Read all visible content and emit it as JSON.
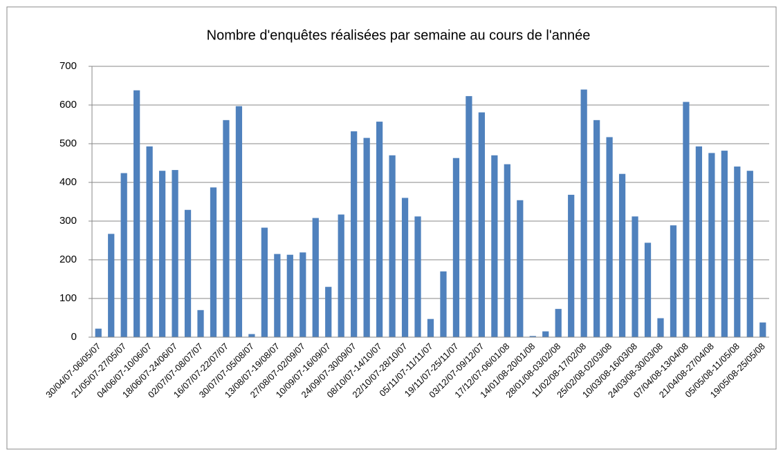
{
  "chart_data": {
    "type": "bar",
    "title": "Nombre d'enquêtes réalisées par semaine au cours de l'année",
    "categories": [
      "30/04/07-06/05/07",
      null,
      "21/05/07-27/05/07",
      null,
      "04/06/07-10/06/07",
      null,
      "18/06/07-24/06/07",
      null,
      "02/07/07-08/07/07",
      null,
      "16/07/07-22/07/07",
      null,
      "30/07/07-05/08/07",
      null,
      "13/08/07-19/08/07",
      null,
      "27/08/07-02/09/07",
      null,
      "10/09/07-16/09/07",
      null,
      "24/09/07-30/09/07",
      null,
      "08/10/07-14/10/07",
      null,
      "22/10/07-28/10/07",
      null,
      "05/11/07-11/11/07",
      null,
      "19/11/07-25/11/07",
      null,
      "03/12/07-09/12/07",
      null,
      "17/12/07-06/01/08",
      null,
      "14/01/08-20/01/08",
      null,
      "28/01/08-03/02/08",
      null,
      "11/02/08-17/02/08",
      null,
      "25/02/08-02/03/08",
      null,
      "10/03/08-16/03/08",
      null,
      "24/03/08-30/03/08",
      null,
      "07/04/08-13/04/08",
      null,
      "21/04/08-27/04/08",
      null,
      "05/05/08-11/05/08",
      null,
      "19/05/08-25/05/08"
    ],
    "values": [
      22,
      267,
      424,
      638,
      493,
      430,
      432,
      329,
      70,
      387,
      561,
      597,
      8,
      283,
      215,
      213,
      219,
      308,
      130,
      317,
      532,
      515,
      557,
      470,
      360,
      312,
      47,
      170,
      463,
      623,
      581,
      470,
      447,
      354,
      3,
      15,
      73,
      368,
      640,
      561,
      517,
      422,
      312,
      244,
      49,
      289,
      608,
      493,
      476,
      482,
      441,
      430,
      38
    ],
    "color": "#4f81bd",
    "ylim": [
      0,
      700
    ],
    "yticks": [
      0,
      100,
      200,
      300,
      400,
      500,
      600,
      700
    ],
    "grid": true
  }
}
